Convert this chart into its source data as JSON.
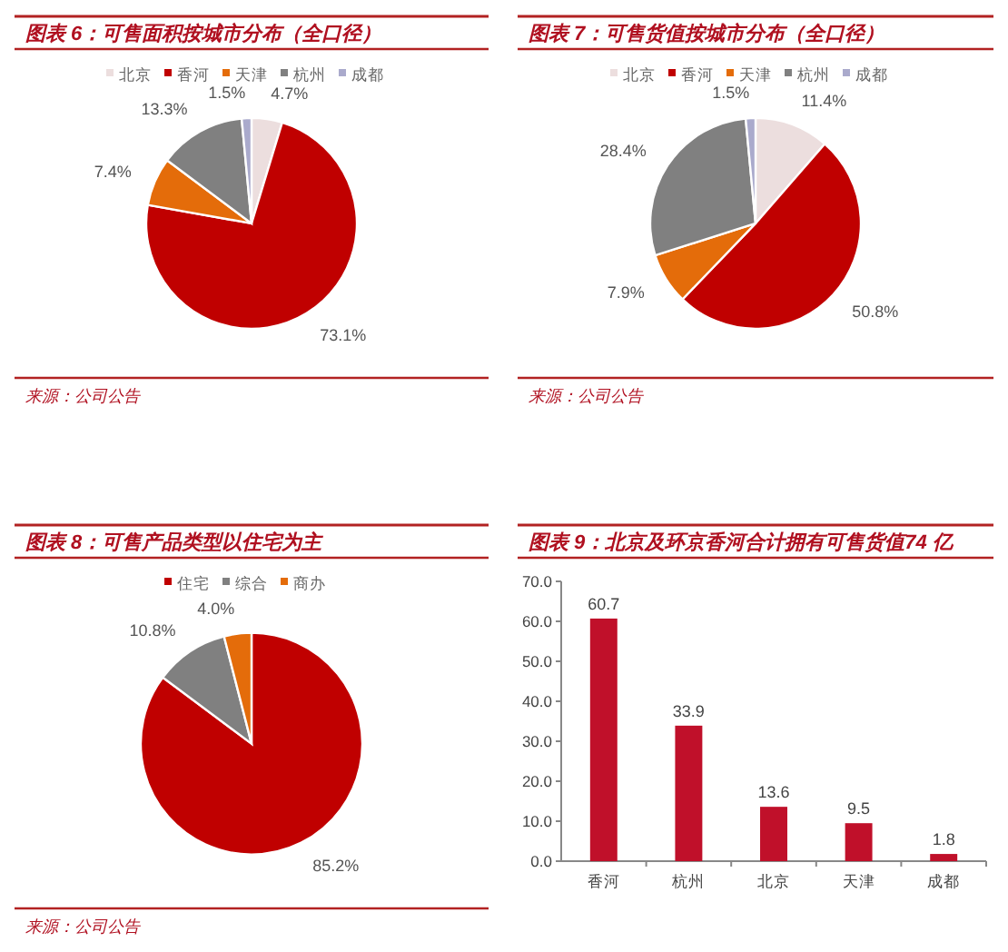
{
  "chart_data": [
    {
      "type": "pie",
      "title": "图表 6：可售面积按城市分布（全口径）",
      "categories": [
        "北京",
        "香河",
        "天津",
        "杭州",
        "成都"
      ],
      "values": [
        4.7,
        73.1,
        7.4,
        13.3,
        1.5
      ],
      "colors": [
        "#ecdede",
        "#c00000",
        "#e46c0a",
        "#808080",
        "#aaaacc"
      ],
      "value_labels": [
        "4.7%",
        "73.1%",
        "7.4%",
        "13.3%",
        "1.5%"
      ],
      "legend": "top",
      "annotations": [
        "来源：公司公告"
      ]
    },
    {
      "type": "pie",
      "title": "图表 7：可售货值按城市分布（全口径）",
      "categories": [
        "北京",
        "香河",
        "天津",
        "杭州",
        "成都"
      ],
      "values": [
        11.4,
        50.8,
        7.9,
        28.4,
        1.5
      ],
      "colors": [
        "#ecdede",
        "#c00000",
        "#e46c0a",
        "#808080",
        "#aaaacc"
      ],
      "value_labels": [
        "11.4%",
        "50.8%",
        "7.9%",
        "28.4%",
        "1.5%"
      ],
      "legend": "top",
      "annotations": [
        "来源：公司公告"
      ]
    },
    {
      "type": "pie",
      "title": "图表 8：可售产品类型以住宅为主",
      "categories": [
        "住宅",
        "综合",
        "商办"
      ],
      "values": [
        85.2,
        10.8,
        4.0
      ],
      "colors": [
        "#c00000",
        "#808080",
        "#e46c0a"
      ],
      "value_labels": [
        "85.2%",
        "10.8%",
        "4.0%"
      ],
      "legend": "top",
      "annotations": [
        "来源：公司公告"
      ]
    },
    {
      "type": "bar",
      "title": "图表 9：北京及环京香河合计拥有可售货值74 亿",
      "categories": [
        "香河",
        "杭州",
        "北京",
        "天津",
        "成都"
      ],
      "values": [
        60.7,
        33.9,
        13.6,
        9.5,
        1.8
      ],
      "color": "#c0102a",
      "ylim": [
        0,
        70
      ],
      "yticks": [
        {
          "value": 0,
          "label": "0.0"
        },
        {
          "value": 10,
          "label": "10.0"
        },
        {
          "value": 20,
          "label": "20.0"
        },
        {
          "value": 30,
          "label": "30.0"
        },
        {
          "value": 40,
          "label": "40.0"
        },
        {
          "value": 50,
          "label": "50.0"
        },
        {
          "value": 60,
          "label": "60.0"
        },
        {
          "value": 70,
          "label": "70.0"
        }
      ],
      "data_labels": true
    }
  ]
}
